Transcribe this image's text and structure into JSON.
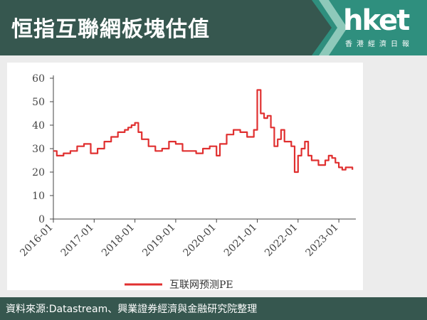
{
  "header": {
    "title": "恒指互聯網板塊估值",
    "logo_text": "hket",
    "logo_sub": "香港經濟日報",
    "bg_color": "#36574f"
  },
  "footer": {
    "source": "資料來源:Datastream、興業證券經濟與金融研究院整理"
  },
  "chart_data": {
    "type": "line",
    "color": "#e03030",
    "ylim": [
      0,
      60
    ],
    "yticks": [
      "0",
      "10",
      "20",
      "30",
      "40",
      "50",
      "60"
    ],
    "xlim": [
      "2016-01",
      "2023-06"
    ],
    "xticks": [
      "2016-01",
      "2017-01",
      "2018-01",
      "2019-01",
      "2020-01",
      "2021-01",
      "2022-01",
      "2023-01"
    ],
    "legend": "互联网预测PE",
    "series": [
      {
        "name": "互联网预测PE",
        "x": [
          "2016-01",
          "2016-02",
          "2016-04",
          "2016-06",
          "2016-08",
          "2016-10",
          "2016-12",
          "2017-01",
          "2017-02",
          "2017-04",
          "2017-06",
          "2017-08",
          "2017-10",
          "2017-11",
          "2017-12",
          "2018-01",
          "2018-02",
          "2018-03",
          "2018-05",
          "2018-07",
          "2018-09",
          "2018-11",
          "2019-01",
          "2019-03",
          "2019-05",
          "2019-07",
          "2019-09",
          "2019-11",
          "2020-01",
          "2020-02",
          "2020-04",
          "2020-06",
          "2020-08",
          "2020-10",
          "2020-12",
          "2021-01",
          "2021-02",
          "2021-03",
          "2021-04",
          "2021-05",
          "2021-06",
          "2021-07",
          "2021-08",
          "2021-09",
          "2021-11",
          "2021-12",
          "2022-01",
          "2022-02",
          "2022-03",
          "2022-04",
          "2022-05",
          "2022-07",
          "2022-09",
          "2022-10",
          "2022-11",
          "2022-12",
          "2023-01",
          "2023-02",
          "2023-03",
          "2023-04",
          "2023-05"
        ],
        "y": [
          29,
          27,
          28,
          29,
          31,
          32,
          28,
          28,
          30,
          33,
          35,
          37,
          38,
          39,
          40,
          41,
          37,
          34,
          31,
          29,
          30,
          33,
          32,
          29,
          29,
          28,
          30,
          31,
          27,
          32,
          36,
          38,
          37,
          35,
          38,
          55,
          45,
          43,
          44,
          39,
          31,
          34,
          38,
          33,
          31,
          20,
          27,
          30,
          33,
          27,
          25,
          23,
          25,
          27,
          26,
          24,
          22,
          21,
          22,
          22,
          21
        ]
      }
    ]
  }
}
